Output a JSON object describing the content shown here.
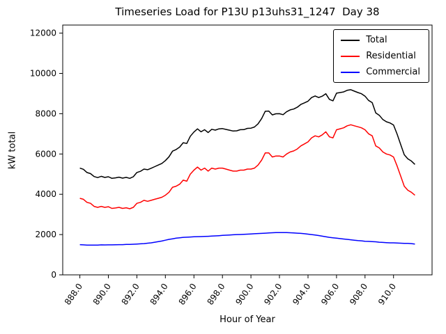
{
  "chart_data": {
    "type": "line",
    "title": "Timeseries Load for P13U p13uhs31_1247  Day 38",
    "xlabel": "Hour of Year",
    "ylabel": "kW total",
    "xlim": [
      886.8,
      912.7
    ],
    "ylim": [
      0,
      12400
    ],
    "xticks": [
      "888.0",
      "890.0",
      "892.0",
      "894.0",
      "896.0",
      "898.0",
      "900.0",
      "902.0",
      "904.0",
      "906.0",
      "908.0",
      "910.0"
    ],
    "xtick_values": [
      888,
      890,
      892,
      894,
      896,
      898,
      900,
      902,
      904,
      906,
      908,
      910
    ],
    "yticks": [
      0,
      2000,
      4000,
      6000,
      8000,
      10000,
      12000
    ],
    "grid": false,
    "legend_position": "upper right",
    "x": [
      888,
      888.25,
      888.5,
      888.75,
      889,
      889.25,
      889.5,
      889.75,
      890,
      890.25,
      890.5,
      890.75,
      891,
      891.25,
      891.5,
      891.75,
      892,
      892.25,
      892.5,
      892.75,
      893,
      893.25,
      893.5,
      893.75,
      894,
      894.25,
      894.5,
      894.75,
      895,
      895.25,
      895.5,
      895.75,
      896,
      896.25,
      896.5,
      896.75,
      897,
      897.25,
      897.5,
      897.75,
      898,
      898.25,
      898.5,
      898.75,
      899,
      899.25,
      899.5,
      899.75,
      900,
      900.25,
      900.5,
      900.75,
      901,
      901.25,
      901.5,
      901.75,
      902,
      902.25,
      902.5,
      902.75,
      903,
      903.25,
      903.5,
      903.75,
      904,
      904.25,
      904.5,
      904.75,
      905,
      905.25,
      905.5,
      905.75,
      906,
      906.25,
      906.5,
      906.75,
      907,
      907.25,
      907.5,
      907.75,
      908,
      908.25,
      908.5,
      908.75,
      909,
      909.25,
      909.5,
      909.75,
      910,
      910.25,
      910.5,
      910.75,
      911,
      911.25,
      911.5
    ],
    "series": [
      {
        "name": "Total",
        "color": "#000000",
        "values": [
          5300,
          5240,
          5080,
          5025,
          4880,
          4830,
          4890,
          4835,
          4870,
          4790,
          4815,
          4850,
          4800,
          4840,
          4790,
          4870,
          5080,
          5140,
          5250,
          5220,
          5290,
          5370,
          5450,
          5530,
          5670,
          5860,
          6140,
          6220,
          6340,
          6560,
          6520,
          6880,
          7090,
          7245,
          7100,
          7205,
          7065,
          7225,
          7185,
          7245,
          7260,
          7220,
          7180,
          7140,
          7150,
          7205,
          7210,
          7270,
          7280,
          7340,
          7500,
          7760,
          8120,
          8130,
          7940,
          7995,
          8000,
          7950,
          8095,
          8190,
          8230,
          8320,
          8460,
          8540,
          8620,
          8800,
          8880,
          8800,
          8870,
          8990,
          8710,
          8640,
          9020,
          9050,
          9080,
          9160,
          9190,
          9120,
          9050,
          8990,
          8870,
          8660,
          8550,
          8040,
          7920,
          7710,
          7600,
          7540,
          7440,
          6980,
          6470,
          5960,
          5760,
          5650,
          5480
        ]
      },
      {
        "name": "Residential",
        "color": "#ff0000",
        "values": [
          3800,
          3750,
          3600,
          3550,
          3400,
          3350,
          3400,
          3350,
          3380,
          3300,
          3320,
          3350,
          3300,
          3330,
          3280,
          3350,
          3550,
          3600,
          3700,
          3650,
          3700,
          3750,
          3800,
          3850,
          3950,
          4100,
          4350,
          4400,
          4500,
          4700,
          4650,
          5000,
          5200,
          5350,
          5200,
          5300,
          5150,
          5300,
          5250,
          5300,
          5300,
          5250,
          5200,
          5150,
          5150,
          5200,
          5200,
          5250,
          5250,
          5300,
          5450,
          5700,
          6050,
          6050,
          5850,
          5900,
          5900,
          5850,
          6000,
          6100,
          6150,
          6250,
          6400,
          6500,
          6600,
          6800,
          6900,
          6850,
          6950,
          7100,
          6850,
          6800,
          7200,
          7250,
          7300,
          7400,
          7450,
          7400,
          7350,
          7300,
          7200,
          7000,
          6900,
          6400,
          6300,
          6100,
          6000,
          5950,
          5850,
          5400,
          4900,
          4400,
          4200,
          4100,
          3950
        ]
      },
      {
        "name": "Commercial",
        "color": "#0000ff",
        "values": [
          1500,
          1490,
          1480,
          1475,
          1480,
          1480,
          1490,
          1485,
          1490,
          1490,
          1495,
          1500,
          1500,
          1510,
          1510,
          1520,
          1530,
          1540,
          1550,
          1570,
          1590,
          1620,
          1650,
          1680,
          1720,
          1760,
          1790,
          1820,
          1840,
          1860,
          1870,
          1880,
          1890,
          1895,
          1900,
          1905,
          1915,
          1925,
          1935,
          1945,
          1960,
          1970,
          1980,
          1990,
          2000,
          2005,
          2010,
          2020,
          2030,
          2040,
          2050,
          2060,
          2070,
          2080,
          2090,
          2095,
          2100,
          2100,
          2095,
          2090,
          2080,
          2070,
          2060,
          2040,
          2020,
          2000,
          1980,
          1950,
          1920,
          1890,
          1860,
          1840,
          1820,
          1800,
          1780,
          1760,
          1740,
          1720,
          1700,
          1690,
          1670,
          1660,
          1650,
          1640,
          1620,
          1610,
          1600,
          1590,
          1590,
          1580,
          1570,
          1560,
          1560,
          1550,
          1530
        ]
      }
    ]
  }
}
